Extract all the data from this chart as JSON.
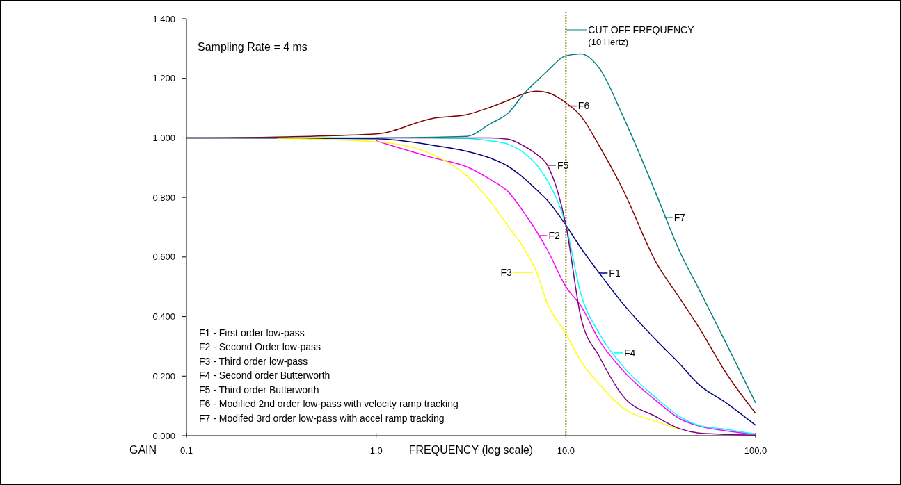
{
  "chart_data": {
    "type": "line",
    "xlabel": "FREQUENCY (log scale)",
    "ylabel": "GAIN",
    "log": "x",
    "grid": false,
    "marker": "none",
    "line_style": "solid",
    "xlim": [
      0.1,
      100
    ],
    "xticks": [
      {
        "value": 0.1,
        "label": "0.1"
      },
      {
        "value": 1,
        "label": "1.0"
      },
      {
        "value": 10,
        "label": "10.0"
      },
      {
        "value": 100,
        "label": "100.0"
      }
    ],
    "ylim": [
      0,
      1.4
    ],
    "yticks": [
      {
        "value": 0,
        "label": "0.000"
      },
      {
        "value": 0.2,
        "label": "0.200"
      },
      {
        "value": 0.4,
        "label": "0.400"
      },
      {
        "value": 0.6,
        "label": "0.600"
      },
      {
        "value": 0.8,
        "label": "0.800"
      },
      {
        "value": 1,
        "label": "1.000"
      },
      {
        "value": 1.2,
        "label": "1.200"
      },
      {
        "value": 1.4,
        "label": "1.400"
      }
    ],
    "x": [
      0.1,
      0.3,
      1,
      2,
      3,
      4,
      5,
      6,
      7,
      8,
      10,
      12,
      15,
      20,
      30,
      40,
      50,
      70,
      100
    ],
    "series": [
      {
        "color": "#000080",
        "values": [
          1,
          0.999,
          0.997,
          0.975,
          0.955,
          0.932,
          0.903,
          0.865,
          0.826,
          0.79,
          0.707,
          0.63,
          0.546,
          0.443,
          0.32,
          0.24,
          0.173,
          0.11,
          0.035
        ]
      },
      {
        "color": "#ff00ff",
        "values": [
          null,
          null,
          0.99,
          0.933,
          0.903,
          0.86,
          0.817,
          0.75,
          0.686,
          0.623,
          0.5,
          0.436,
          0.32,
          0.219,
          0.117,
          0.056,
          0.033,
          0.016,
          0.005
        ]
      },
      {
        "color": "#ffff00",
        "values": [
          null,
          0.998,
          0.987,
          0.943,
          0.873,
          0.786,
          0.7,
          0.63,
          0.55,
          0.443,
          0.343,
          0.25,
          0.173,
          0.093,
          0.047,
          0.021,
          null,
          null,
          null
        ]
      },
      {
        "color": "#00ffff",
        "values": [
          null,
          null,
          null,
          1,
          0.998,
          0.99,
          0.978,
          0.95,
          0.91,
          0.856,
          0.707,
          0.476,
          0.343,
          0.233,
          0.126,
          0.063,
          0.035,
          0.021,
          0.005
        ]
      },
      {
        "color": "#800080",
        "values": [
          null,
          null,
          1,
          1,
          1,
          1,
          0.995,
          0.973,
          0.945,
          0.908,
          0.707,
          0.397,
          0.266,
          0.133,
          0.063,
          0.023,
          0.009,
          0.004,
          0.002
        ]
      },
      {
        "color": "#800000",
        "values": [
          1,
          1.003,
          1.013,
          1.066,
          1.078,
          1.103,
          1.127,
          1.148,
          1.157,
          1.152,
          1.118,
          1.073,
          0.973,
          0.826,
          0.58,
          0.46,
          0.366,
          0.21,
          0.075
        ]
      },
      {
        "color": "#008080",
        "values": [
          1,
          1,
          1,
          1.002,
          1.005,
          1.048,
          1.085,
          1.148,
          1.19,
          1.225,
          1.276,
          1.282,
          1.234,
          1.073,
          0.81,
          0.616,
          0.495,
          0.31,
          0.11
        ]
      }
    ],
    "ref_lines": [
      {
        "axis": "x",
        "value": 10,
        "label": "CUT OFF FREQUENCY\n(10 Hertz)",
        "color": "#808000",
        "line_style": "dotted"
      }
    ],
    "annotations": [
      "Sampling Rate = 4 ms",
      "F1 - First order low-pass",
      "F2 - Second Order low-pass",
      "F3 - Third order low-pass",
      "F4 - Second order Butterworth",
      "F5 - Third order Butterworth",
      "F6 - Modified 2nd order low-pass with velocity ramp tracking",
      "F7 - Modifed 3rd order low-pass with accel ramp tracking",
      {
        "text": "F1",
        "x": 15,
        "y": 0.546
      },
      {
        "text": "F2",
        "x": 7.2,
        "y": 0.672
      },
      {
        "text": "F3",
        "x": 6.7,
        "y": 0.548
      },
      {
        "text": "F4",
        "x": 18,
        "y": 0.278
      },
      {
        "text": "F5",
        "x": 8,
        "y": 0.908
      },
      {
        "text": "F6",
        "x": 10.3,
        "y": 1.107
      },
      {
        "text": "F7",
        "x": 33,
        "y": 0.733
      }
    ]
  }
}
